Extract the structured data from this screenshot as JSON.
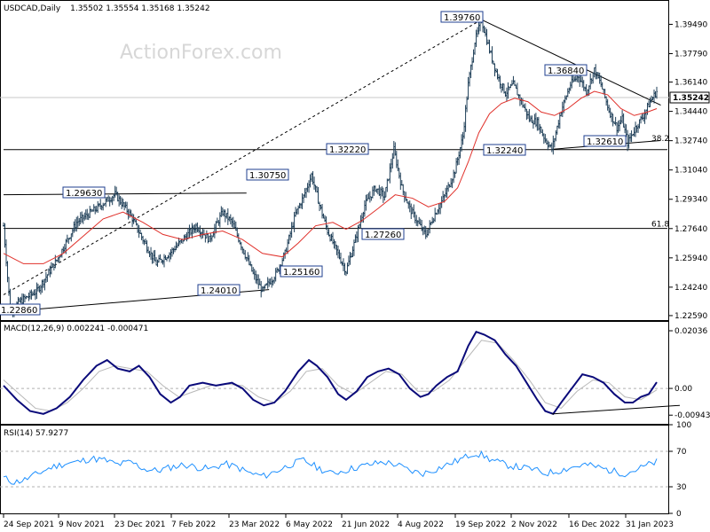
{
  "header": {
    "symbol": "USDCAD,Daily",
    "ohlc": "1.35502 1.35554 1.35168 1.35242",
    "watermark": "ActionForex.com"
  },
  "chart_data": [
    {
      "type": "line",
      "name": "price",
      "ylim": [
        1.2233,
        1.4085
      ],
      "y_ticks": [
        "1.39490",
        "1.37790",
        "1.36140",
        "1.34440",
        "1.32740",
        "1.31040",
        "1.29340",
        "1.27640",
        "1.25940",
        "1.24240",
        "1.22590"
      ],
      "x_ticks": [
        "24 Sep 2021",
        "9 Nov 2021",
        "23 Dec 2021",
        "7 Feb 2022",
        "23 Mar 2022",
        "6 May 2022",
        "21 Jun 2022",
        "4 Aug 2022",
        "19 Sep 2022",
        "2 Nov 2022",
        "16 Dec 2022",
        "31 Jan 2023"
      ],
      "current_price": "1.35242",
      "fib_levels": [
        {
          "label": "38.2",
          "value": 1.3262
        },
        {
          "label": "61.8",
          "value": 1.2765
        }
      ],
      "swing_labels": [
        {
          "text": "1.22860",
          "date_index": 5,
          "value": 1.2286
        },
        {
          "text": "1.29630",
          "date_index": 84,
          "value": 1.2963
        },
        {
          "text": "1.24010",
          "date_index": 195,
          "value": 1.2401
        },
        {
          "text": "1.30750",
          "date_index": 232,
          "value": 1.3075
        },
        {
          "text": "1.25160",
          "date_index": 258,
          "value": 1.2516
        },
        {
          "text": "1.32220",
          "date_index": 294,
          "value": 1.3222
        },
        {
          "text": "1.27260",
          "date_index": 318,
          "value": 1.2726
        },
        {
          "text": "1.39760",
          "date_index": 360,
          "value": 1.3976
        },
        {
          "text": "1.32240",
          "date_index": 413,
          "value": 1.3224
        },
        {
          "text": "1.36840",
          "date_index": 445,
          "value": 1.3684
        },
        {
          "text": "1.32610",
          "date_index": 470,
          "value": 1.3261
        }
      ],
      "price_path": [
        [
          0,
          1.278
        ],
        [
          5,
          1.2286
        ],
        [
          12,
          1.234
        ],
        [
          25,
          1.24
        ],
        [
          40,
          1.258
        ],
        [
          55,
          1.28
        ],
        [
          70,
          1.288
        ],
        [
          84,
          1.2963
        ],
        [
          95,
          1.285
        ],
        [
          105,
          1.27
        ],
        [
          115,
          1.256
        ],
        [
          125,
          1.262
        ],
        [
          135,
          1.27
        ],
        [
          145,
          1.278
        ],
        [
          155,
          1.27
        ],
        [
          165,
          1.286
        ],
        [
          172,
          1.28
        ],
        [
          180,
          1.265
        ],
        [
          188,
          1.25
        ],
        [
          195,
          1.2401
        ],
        [
          205,
          1.25
        ],
        [
          212,
          1.262
        ],
        [
          220,
          1.285
        ],
        [
          226,
          1.295
        ],
        [
          232,
          1.3075
        ],
        [
          238,
          1.29
        ],
        [
          244,
          1.275
        ],
        [
          250,
          1.265
        ],
        [
          258,
          1.2516
        ],
        [
          265,
          1.27
        ],
        [
          272,
          1.29
        ],
        [
          280,
          1.3
        ],
        [
          287,
          1.295
        ],
        [
          294,
          1.3222
        ],
        [
          300,
          1.3
        ],
        [
          306,
          1.288
        ],
        [
          312,
          1.28
        ],
        [
          318,
          1.2726
        ],
        [
          325,
          1.285
        ],
        [
          332,
          1.295
        ],
        [
          340,
          1.31
        ],
        [
          346,
          1.33
        ],
        [
          350,
          1.36
        ],
        [
          355,
          1.385
        ],
        [
          360,
          1.3976
        ],
        [
          366,
          1.38
        ],
        [
          372,
          1.365
        ],
        [
          378,
          1.355
        ],
        [
          384,
          1.36
        ],
        [
          390,
          1.35
        ],
        [
          396,
          1.34
        ],
        [
          402,
          1.338
        ],
        [
          408,
          1.328
        ],
        [
          413,
          1.3224
        ],
        [
          420,
          1.345
        ],
        [
          427,
          1.36
        ],
        [
          433,
          1.365
        ],
        [
          439,
          1.356
        ],
        [
          445,
          1.3684
        ],
        [
          450,
          1.36
        ],
        [
          456,
          1.345
        ],
        [
          462,
          1.335
        ],
        [
          466,
          1.34
        ],
        [
          470,
          1.3261
        ],
        [
          476,
          1.335
        ],
        [
          482,
          1.342
        ],
        [
          487,
          1.35
        ],
        [
          492,
          1.356
        ]
      ],
      "sma_path": [
        [
          0,
          1.262
        ],
        [
          15,
          1.256
        ],
        [
          30,
          1.256
        ],
        [
          45,
          1.262
        ],
        [
          60,
          1.272
        ],
        [
          75,
          1.282
        ],
        [
          90,
          1.286
        ],
        [
          105,
          1.28
        ],
        [
          120,
          1.273
        ],
        [
          135,
          1.27
        ],
        [
          150,
          1.273
        ],
        [
          165,
          1.275
        ],
        [
          180,
          1.27
        ],
        [
          195,
          1.262
        ],
        [
          210,
          1.26
        ],
        [
          222,
          1.268
        ],
        [
          235,
          1.278
        ],
        [
          248,
          1.28
        ],
        [
          258,
          1.276
        ],
        [
          270,
          1.281
        ],
        [
          282,
          1.288
        ],
        [
          295,
          1.296
        ],
        [
          308,
          1.294
        ],
        [
          320,
          1.289
        ],
        [
          332,
          1.292
        ],
        [
          342,
          1.3
        ],
        [
          350,
          1.315
        ],
        [
          358,
          1.332
        ],
        [
          366,
          1.343
        ],
        [
          375,
          1.349
        ],
        [
          385,
          1.352
        ],
        [
          395,
          1.35
        ],
        [
          405,
          1.344
        ],
        [
          415,
          1.342
        ],
        [
          425,
          1.346
        ],
        [
          435,
          1.352
        ],
        [
          445,
          1.356
        ],
        [
          455,
          1.354
        ],
        [
          465,
          1.346
        ],
        [
          475,
          1.342
        ],
        [
          485,
          1.344
        ],
        [
          492,
          1.346
        ]
      ],
      "trendlines": [
        {
          "style": "dotted",
          "from": [
            0,
            1.238
          ],
          "to": [
            360,
            1.3976
          ]
        },
        {
          "style": "solid",
          "from": [
            360,
            1.3976
          ],
          "to": [
            495,
            1.348
          ]
        },
        {
          "style": "solid",
          "from": [
            0,
            1.296
          ],
          "to": [
            183,
            1.297
          ]
        },
        {
          "style": "solid",
          "from": [
            0,
            1.228
          ],
          "to": [
            200,
            1.241
          ]
        },
        {
          "style": "solid",
          "from": [
            0,
            1.3222
          ],
          "to": [
            500,
            1.3222
          ]
        },
        {
          "style": "solid",
          "from": [
            0,
            1.2765
          ],
          "to": [
            500,
            1.2765
          ]
        },
        {
          "style": "solid",
          "from": [
            413,
            1.3224
          ],
          "to": [
            495,
            1.3275
          ]
        }
      ]
    },
    {
      "type": "line",
      "name": "MACD",
      "title": "MACD(12,26,9) 0.002241 -0.000471",
      "ylim": [
        -0.0125,
        0.0235
      ],
      "y_ticks": [
        {
          "label": "0.02036",
          "value": 0.02036
        },
        {
          "label": "0.00",
          "value": 0.0
        },
        {
          "label": "-0.009438",
          "value": -0.009438
        }
      ],
      "macd_path": [
        [
          0,
          0.001
        ],
        [
          10,
          -0.004
        ],
        [
          20,
          -0.008
        ],
        [
          30,
          -0.009
        ],
        [
          40,
          -0.007
        ],
        [
          50,
          -0.003
        ],
        [
          60,
          0.003
        ],
        [
          70,
          0.008
        ],
        [
          78,
          0.01
        ],
        [
          86,
          0.007
        ],
        [
          95,
          0.006
        ],
        [
          102,
          0.008
        ],
        [
          110,
          0.004
        ],
        [
          118,
          -0.002
        ],
        [
          126,
          -0.005
        ],
        [
          133,
          -0.003
        ],
        [
          140,
          0.001
        ],
        [
          150,
          0.002
        ],
        [
          160,
          0.001
        ],
        [
          172,
          0.002
        ],
        [
          180,
          0.0
        ],
        [
          188,
          -0.004
        ],
        [
          196,
          -0.006
        ],
        [
          204,
          -0.005
        ],
        [
          212,
          -0.001
        ],
        [
          222,
          0.006
        ],
        [
          230,
          0.01
        ],
        [
          236,
          0.008
        ],
        [
          244,
          0.004
        ],
        [
          252,
          -0.002
        ],
        [
          258,
          -0.004
        ],
        [
          266,
          -0.001
        ],
        [
          274,
          0.004
        ],
        [
          282,
          0.006
        ],
        [
          290,
          0.007
        ],
        [
          298,
          0.005
        ],
        [
          306,
          0.0
        ],
        [
          314,
          -0.003
        ],
        [
          320,
          -0.002
        ],
        [
          326,
          0.001
        ],
        [
          334,
          0.004
        ],
        [
          342,
          0.006
        ],
        [
          350,
          0.015
        ],
        [
          356,
          0.02
        ],
        [
          362,
          0.019
        ],
        [
          370,
          0.017
        ],
        [
          378,
          0.012
        ],
        [
          386,
          0.008
        ],
        [
          394,
          0.002
        ],
        [
          402,
          -0.004
        ],
        [
          408,
          -0.008
        ],
        [
          414,
          -0.009
        ],
        [
          420,
          -0.005
        ],
        [
          428,
          0.0
        ],
        [
          436,
          0.005
        ],
        [
          444,
          0.004
        ],
        [
          452,
          0.002
        ],
        [
          460,
          -0.002
        ],
        [
          468,
          -0.005
        ],
        [
          474,
          -0.005
        ],
        [
          480,
          -0.003
        ],
        [
          486,
          -0.002
        ],
        [
          492,
          0.0022
        ]
      ],
      "signal_path": [
        [
          0,
          0.003
        ],
        [
          12,
          -0.002
        ],
        [
          24,
          -0.007
        ],
        [
          36,
          -0.008
        ],
        [
          48,
          -0.005
        ],
        [
          60,
          0.0
        ],
        [
          72,
          0.006
        ],
        [
          84,
          0.008
        ],
        [
          96,
          0.007
        ],
        [
          108,
          0.006
        ],
        [
          120,
          0.001
        ],
        [
          132,
          -0.003
        ],
        [
          144,
          -0.001
        ],
        [
          156,
          0.001
        ],
        [
          168,
          0.0015
        ],
        [
          180,
          0.001
        ],
        [
          192,
          -0.003
        ],
        [
          204,
          -0.005
        ],
        [
          216,
          -0.001
        ],
        [
          228,
          0.006
        ],
        [
          240,
          0.007
        ],
        [
          252,
          0.001
        ],
        [
          264,
          -0.002
        ],
        [
          276,
          0.002
        ],
        [
          288,
          0.006
        ],
        [
          300,
          0.005
        ],
        [
          312,
          -0.001
        ],
        [
          324,
          -0.001
        ],
        [
          336,
          0.003
        ],
        [
          348,
          0.01
        ],
        [
          360,
          0.017
        ],
        [
          372,
          0.016
        ],
        [
          384,
          0.01
        ],
        [
          396,
          0.003
        ],
        [
          408,
          -0.005
        ],
        [
          420,
          -0.007
        ],
        [
          432,
          -0.001
        ],
        [
          444,
          0.003
        ],
        [
          456,
          0.002
        ],
        [
          468,
          -0.003
        ],
        [
          480,
          -0.004
        ],
        [
          492,
          -0.0005
        ]
      ],
      "trendline": {
        "from": [
          413,
          -0.009
        ],
        "to": [
          500,
          -0.006
        ]
      }
    },
    {
      "type": "line",
      "name": "RSI",
      "title": "RSI(14) 57.9277",
      "ylim": [
        0,
        100
      ],
      "y_ticks": [
        "100",
        "70",
        "30",
        "0"
      ],
      "rsi_path": [
        [
          0,
          40
        ],
        [
          8,
          35
        ],
        [
          16,
          38
        ],
        [
          26,
          45
        ],
        [
          36,
          52
        ],
        [
          46,
          56
        ],
        [
          56,
          58
        ],
        [
          66,
          62
        ],
        [
          76,
          60
        ],
        [
          86,
          55
        ],
        [
          96,
          58
        ],
        [
          106,
          50
        ],
        [
          116,
          48
        ],
        [
          126,
          52
        ],
        [
          136,
          55
        ],
        [
          146,
          52
        ],
        [
          156,
          50
        ],
        [
          166,
          56
        ],
        [
          176,
          52
        ],
        [
          186,
          45
        ],
        [
          196,
          42
        ],
        [
          206,
          48
        ],
        [
          216,
          55
        ],
        [
          226,
          60
        ],
        [
          236,
          52
        ],
        [
          246,
          45
        ],
        [
          256,
          48
        ],
        [
          266,
          52
        ],
        [
          276,
          55
        ],
        [
          286,
          58
        ],
        [
          296,
          55
        ],
        [
          306,
          48
        ],
        [
          316,
          45
        ],
        [
          326,
          50
        ],
        [
          336,
          56
        ],
        [
          346,
          62
        ],
        [
          354,
          68
        ],
        [
          360,
          66
        ],
        [
          368,
          60
        ],
        [
          378,
          55
        ],
        [
          388,
          52
        ],
        [
          398,
          50
        ],
        [
          408,
          45
        ],
        [
          418,
          48
        ],
        [
          428,
          52
        ],
        [
          438,
          55
        ],
        [
          448,
          52
        ],
        [
          458,
          48
        ],
        [
          468,
          45
        ],
        [
          478,
          50
        ],
        [
          486,
          55
        ],
        [
          492,
          58
        ]
      ]
    }
  ]
}
